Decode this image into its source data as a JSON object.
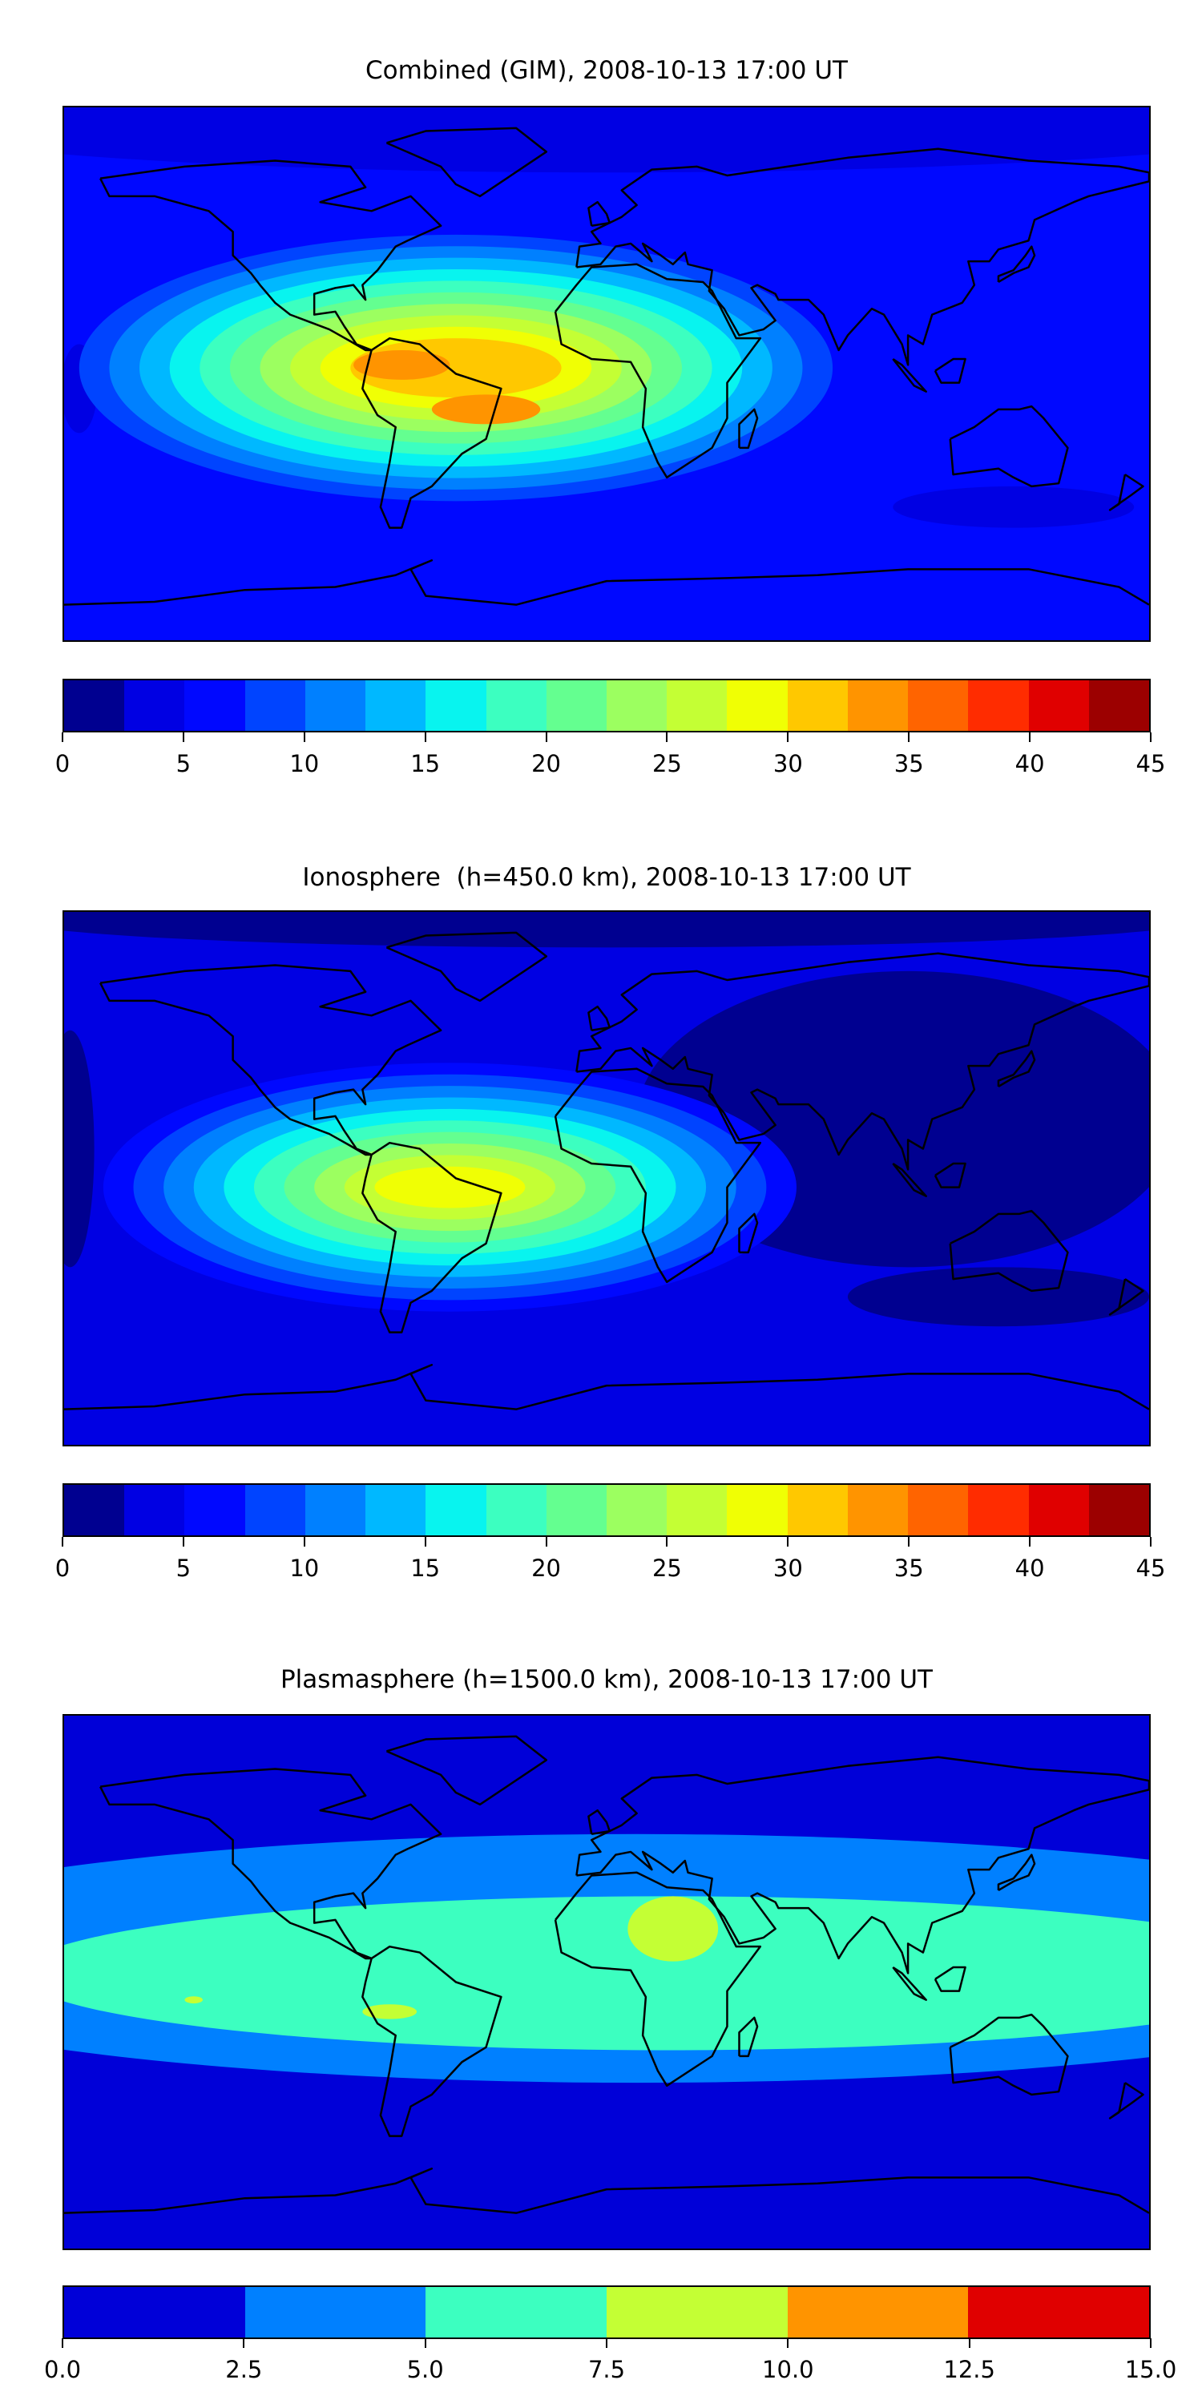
{
  "chart_data": [
    {
      "type": "heatmap",
      "title": "Combined (GIM), 2008-10-13 17:00 UT",
      "colorbar": {
        "range": [
          0,
          45
        ],
        "ticks": [
          "0",
          "5",
          "10",
          "15",
          "20",
          "25",
          "30",
          "35",
          "40",
          "45"
        ],
        "tick_values": [
          0,
          5,
          10,
          15,
          20,
          25,
          30,
          35,
          40,
          45
        ],
        "colors": [
          "#000090",
          "#0000e3",
          "#0008ff",
          "#0044ff",
          "#0080ff",
          "#00b8ff",
          "#08f4ef",
          "#3cffc0",
          "#64ff90",
          "#9cff60",
          "#c4ff34",
          "#f0ff04",
          "#ffc800",
          "#ff9400",
          "#ff6400",
          "#ff2c00",
          "#e00000",
          "#9c0000"
        ]
      },
      "background_level": 2,
      "features": [
        {
          "level": 1,
          "center": [
            0,
            90
          ],
          "radii": [
            260,
            22
          ]
        },
        {
          "level": 1,
          "center": [
            135,
            -45
          ],
          "radii": [
            40,
            7
          ]
        },
        {
          "level": 1,
          "center": [
            -175,
            -5
          ],
          "radii": [
            6,
            15
          ]
        },
        {
          "nested": true,
          "levels": [
            3,
            12
          ],
          "center": [
            -50,
            2
          ],
          "radii": [
            125,
            45
          ],
          "inner_radii": [
            35,
            10
          ]
        },
        {
          "level": 13,
          "center": [
            -68,
            3
          ],
          "radii": [
            16,
            5
          ]
        },
        {
          "level": 13,
          "center": [
            -40,
            -12
          ],
          "radii": [
            18,
            5
          ]
        }
      ]
    },
    {
      "type": "heatmap",
      "title": "Ionosphere  (h=450.0 km), 2008-10-13 17:00 UT",
      "colorbar": {
        "range": [
          0,
          45
        ],
        "ticks": [
          "0",
          "5",
          "10",
          "15",
          "20",
          "25",
          "30",
          "35",
          "40",
          "45"
        ],
        "tick_values": [
          0,
          5,
          10,
          15,
          20,
          25,
          30,
          35,
          40,
          45
        ],
        "colors": [
          "#000090",
          "#0000e3",
          "#0008ff",
          "#0044ff",
          "#0080ff",
          "#00b8ff",
          "#08f4ef",
          "#3cffc0",
          "#64ff90",
          "#9cff60",
          "#c4ff34",
          "#f0ff04",
          "#ffc800",
          "#ff9400",
          "#ff6400",
          "#ff2c00",
          "#e00000",
          "#9c0000"
        ]
      },
      "background_level": 1,
      "features": [
        {
          "level": 0,
          "center": [
            100,
            20
          ],
          "radii": [
            90,
            50
          ]
        },
        {
          "level": 0,
          "center": [
            130,
            -40
          ],
          "radii": [
            50,
            10
          ]
        },
        {
          "level": 0,
          "center": [
            -178,
            10
          ],
          "radii": [
            8,
            40
          ]
        },
        {
          "level": 0,
          "center": [
            0,
            88
          ],
          "radii": [
            200,
            10
          ]
        },
        {
          "nested": true,
          "levels": [
            2,
            11
          ],
          "center": [
            -52,
            -3
          ],
          "radii": [
            115,
            42
          ],
          "inner_radii": [
            25,
            7
          ]
        }
      ]
    },
    {
      "type": "heatmap",
      "title": "Plasmasphere (h=1500.0 km), 2008-10-13 17:00 UT",
      "colorbar": {
        "range": [
          0,
          15
        ],
        "ticks": [
          "0.0",
          "2.5",
          "5.0",
          "7.5",
          "10.0",
          "12.5",
          "15.0"
        ],
        "tick_values": [
          0,
          2.5,
          5,
          7.5,
          10,
          12.5,
          15
        ],
        "colors": [
          "#0000d8",
          "#0080ff",
          "#3cffc0",
          "#c4ff34",
          "#ff9400",
          "#e00000"
        ]
      },
      "background_level": 0,
      "features": [
        {
          "level": 1,
          "center": [
            10,
            8
          ],
          "radii": [
            280,
            42
          ]
        },
        {
          "level": 2,
          "center": [
            20,
            3
          ],
          "radii": [
            215,
            26
          ]
        },
        {
          "level": 3,
          "center": [
            22,
            18
          ],
          "radii": [
            15,
            11
          ]
        },
        {
          "level": 3,
          "center": [
            -72,
            -10
          ],
          "radii": [
            9,
            2.5
          ]
        },
        {
          "level": 3,
          "center": [
            -137,
            -6
          ],
          "radii": [
            3,
            1.2
          ]
        }
      ]
    }
  ]
}
